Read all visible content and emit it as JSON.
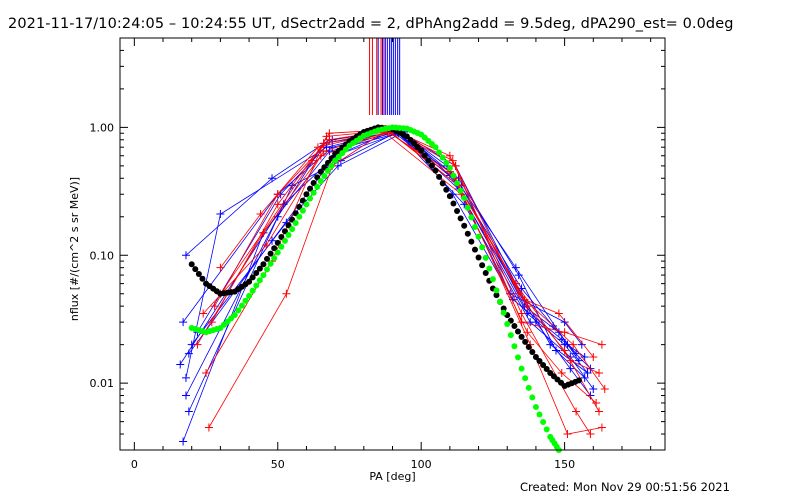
{
  "header": {
    "title": "2021-11-17/10:24:05 – 10:24:55 UT, dSectr2add = 2, dPhAng2add = 9.5deg, dPA290_est=  0.0deg"
  },
  "footer": {
    "created": "Created: Mon Nov 29 00:51:56 2021"
  },
  "chart_data": {
    "type": "scatter",
    "title": "2021-11-17/10:24:05 – 10:24:55 UT, dSectr2add = 2, dPhAng2add = 9.5deg, dPA290_est=  0.0deg",
    "xlabel": "PA [deg]",
    "ylabel": "nflux [#/(cm^2 s sr MeV)]",
    "xlim": [
      -5,
      185
    ],
    "ylim": [
      0.003,
      5.0
    ],
    "yscale": "log",
    "grid": false,
    "x_ticks": [
      {
        "value": 0,
        "label": "0"
      },
      {
        "value": 50,
        "label": "50"
      },
      {
        "value": 100,
        "label": "100"
      },
      {
        "value": 150,
        "label": "150"
      }
    ],
    "y_ticks": [
      {
        "value": 0.01,
        "label": "0.01"
      },
      {
        "value": 0.1,
        "label": "0.10"
      },
      {
        "value": 1.0,
        "label": "1.00"
      }
    ],
    "colors": {
      "red": "#ff0000",
      "blue": "#0000ff",
      "black": "#000000",
      "green": "#00ff00"
    },
    "markers": [
      {
        "color": "#ff0000",
        "x": 82
      },
      {
        "color": "#ff0000",
        "x": 83
      },
      {
        "color": "#ff0000",
        "x": 84.5
      },
      {
        "color": "#ff0000",
        "x": 86
      },
      {
        "color": "#ff0000",
        "x": 87
      },
      {
        "color": "#0000ff",
        "x": 85
      },
      {
        "color": "#0000ff",
        "x": 86.5
      },
      {
        "color": "#0000ff",
        "x": 87.5
      },
      {
        "color": "#0000ff",
        "x": 88.2
      },
      {
        "color": "#0000ff",
        "x": 89
      },
      {
        "color": "#0000ff",
        "x": 89.6
      },
      {
        "color": "#0000ff",
        "x": 90.3
      },
      {
        "color": "#0000ff",
        "x": 91
      },
      {
        "color": "#0000ff",
        "x": 91.8
      },
      {
        "color": "#0000ff",
        "x": 92.5
      }
    ],
    "series": [
      {
        "color": "#0000ff",
        "x": [
          18,
          48,
          68,
          92,
          112,
          133,
          145,
          158
        ],
        "y": [
          0.1,
          0.4,
          0.8,
          0.95,
          0.5,
          0.06,
          0.02,
          0.012
        ]
      },
      {
        "color": "#0000ff",
        "x": [
          17,
          50,
          69,
          93,
          110,
          131,
          150,
          156
        ],
        "y": [
          0.03,
          0.3,
          0.7,
          0.93,
          0.45,
          0.05,
          0.03,
          0.02
        ]
      },
      {
        "color": "#0000ff",
        "x": [
          16,
          52,
          70,
          92,
          114,
          136,
          148,
          155
        ],
        "y": [
          0.014,
          0.25,
          0.6,
          0.9,
          0.35,
          0.04,
          0.025,
          0.015
        ]
      },
      {
        "color": "#0000ff",
        "x": [
          18,
          50,
          66,
          91,
          113,
          134,
          147,
          157
        ],
        "y": [
          0.008,
          0.2,
          0.75,
          0.92,
          0.4,
          0.07,
          0.018,
          0.011
        ]
      },
      {
        "color": "#0000ff",
        "x": [
          19,
          55,
          72,
          93,
          111,
          132,
          149,
          159
        ],
        "y": [
          0.006,
          0.35,
          0.55,
          0.95,
          0.3,
          0.045,
          0.022,
          0.013
        ]
      },
      {
        "color": "#0000ff",
        "x": [
          17,
          45,
          68,
          92,
          115,
          138,
          152,
          160
        ],
        "y": [
          0.0035,
          0.15,
          0.65,
          0.9,
          0.25,
          0.03,
          0.016,
          0.009
        ]
      },
      {
        "color": "#0000ff",
        "x": [
          20,
          53,
          71,
          94,
          112,
          135,
          146,
          154
        ],
        "y": [
          0.02,
          0.18,
          0.5,
          0.92,
          0.38,
          0.055,
          0.028,
          0.017
        ]
      },
      {
        "color": "#0000ff",
        "x": [
          18,
          30,
          67,
          91,
          113,
          137,
          150,
          158
        ],
        "y": [
          0.011,
          0.21,
          0.7,
          0.94,
          0.33,
          0.035,
          0.02,
          0.012
        ]
      },
      {
        "color": "#0000ff",
        "x": [
          22,
          51,
          69,
          92,
          109,
          133,
          151,
          157
        ],
        "y": [
          0.025,
          0.3,
          0.8,
          0.96,
          0.5,
          0.08,
          0.02,
          0.016
        ]
      },
      {
        "color": "#0000ff",
        "x": [
          19,
          48,
          70,
          90,
          110,
          140,
          152,
          159
        ],
        "y": [
          0.017,
          0.13,
          0.6,
          0.93,
          0.42,
          0.03,
          0.013,
          0.008
        ]
      },
      {
        "color": "#ff0000",
        "x": [
          30,
          62,
          68,
          90,
          112,
          135,
          150,
          163
        ],
        "y": [
          0.05,
          0.55,
          0.9,
          0.96,
          0.5,
          0.03,
          0.025,
          0.02
        ]
      },
      {
        "color": "#ff0000",
        "x": [
          27,
          50,
          66,
          88,
          110,
          133,
          152,
          162
        ],
        "y": [
          0.03,
          0.25,
          0.75,
          0.93,
          0.45,
          0.06,
          0.015,
          0.012
        ]
      },
      {
        "color": "#ff0000",
        "x": [
          22,
          45,
          65,
          89,
          113,
          136,
          148,
          160
        ],
        "y": [
          0.02,
          0.15,
          0.6,
          0.92,
          0.35,
          0.045,
          0.035,
          0.016
        ]
      },
      {
        "color": "#ff0000",
        "x": [
          25,
          48,
          67,
          90,
          111,
          134,
          153,
          164
        ],
        "y": [
          0.012,
          0.09,
          0.85,
          0.95,
          0.55,
          0.05,
          0.02,
          0.009
        ]
      },
      {
        "color": "#ff0000",
        "x": [
          26,
          53,
          69,
          87,
          114,
          137,
          149,
          161
        ],
        "y": [
          0.0045,
          0.05,
          0.5,
          0.92,
          0.3,
          0.025,
          0.012,
          0.007
        ]
      },
      {
        "color": "#ff0000",
        "x": [
          30,
          44,
          64,
          88,
          112,
          138,
          151,
          163
        ],
        "y": [
          0.08,
          0.21,
          0.7,
          0.94,
          0.4,
          0.02,
          0.004,
          0.0045
        ]
      },
      {
        "color": "#ff0000",
        "x": [
          28,
          50,
          68,
          90,
          110,
          135,
          154,
          159
        ],
        "y": [
          0.04,
          0.3,
          0.8,
          0.96,
          0.6,
          0.035,
          0.006,
          0.004
        ]
      },
      {
        "color": "#ff0000",
        "x": [
          24,
          46,
          66,
          89,
          113,
          137,
          150,
          162
        ],
        "y": [
          0.035,
          0.12,
          0.65,
          0.93,
          0.35,
          0.04,
          0.018,
          0.006
        ]
      }
    ],
    "fits": [
      {
        "color": "#000000",
        "x": [
          20,
          25,
          30,
          35,
          40,
          45,
          50,
          55,
          60,
          65,
          70,
          75,
          80,
          85,
          90,
          95,
          100,
          105,
          110,
          115,
          120,
          125,
          130,
          135,
          140,
          145,
          150,
          155
        ],
        "y": [
          0.085,
          0.06,
          0.05,
          0.052,
          0.062,
          0.085,
          0.125,
          0.19,
          0.3,
          0.45,
          0.62,
          0.78,
          0.92,
          1.0,
          0.97,
          0.85,
          0.66,
          0.46,
          0.29,
          0.17,
          0.096,
          0.055,
          0.034,
          0.023,
          0.016,
          0.012,
          0.0095,
          0.0105
        ]
      },
      {
        "color": "#00ff00",
        "x": [
          20,
          25,
          30,
          35,
          40,
          45,
          50,
          55,
          60,
          65,
          70,
          75,
          80,
          85,
          90,
          95,
          100,
          105,
          110,
          115,
          120,
          125,
          130,
          135,
          140,
          145,
          148
        ],
        "y": [
          0.027,
          0.025,
          0.027,
          0.034,
          0.048,
          0.07,
          0.105,
          0.16,
          0.25,
          0.38,
          0.55,
          0.72,
          0.86,
          0.95,
          1.0,
          0.98,
          0.88,
          0.7,
          0.48,
          0.28,
          0.14,
          0.065,
          0.029,
          0.013,
          0.0065,
          0.0038,
          0.003
        ]
      }
    ]
  }
}
